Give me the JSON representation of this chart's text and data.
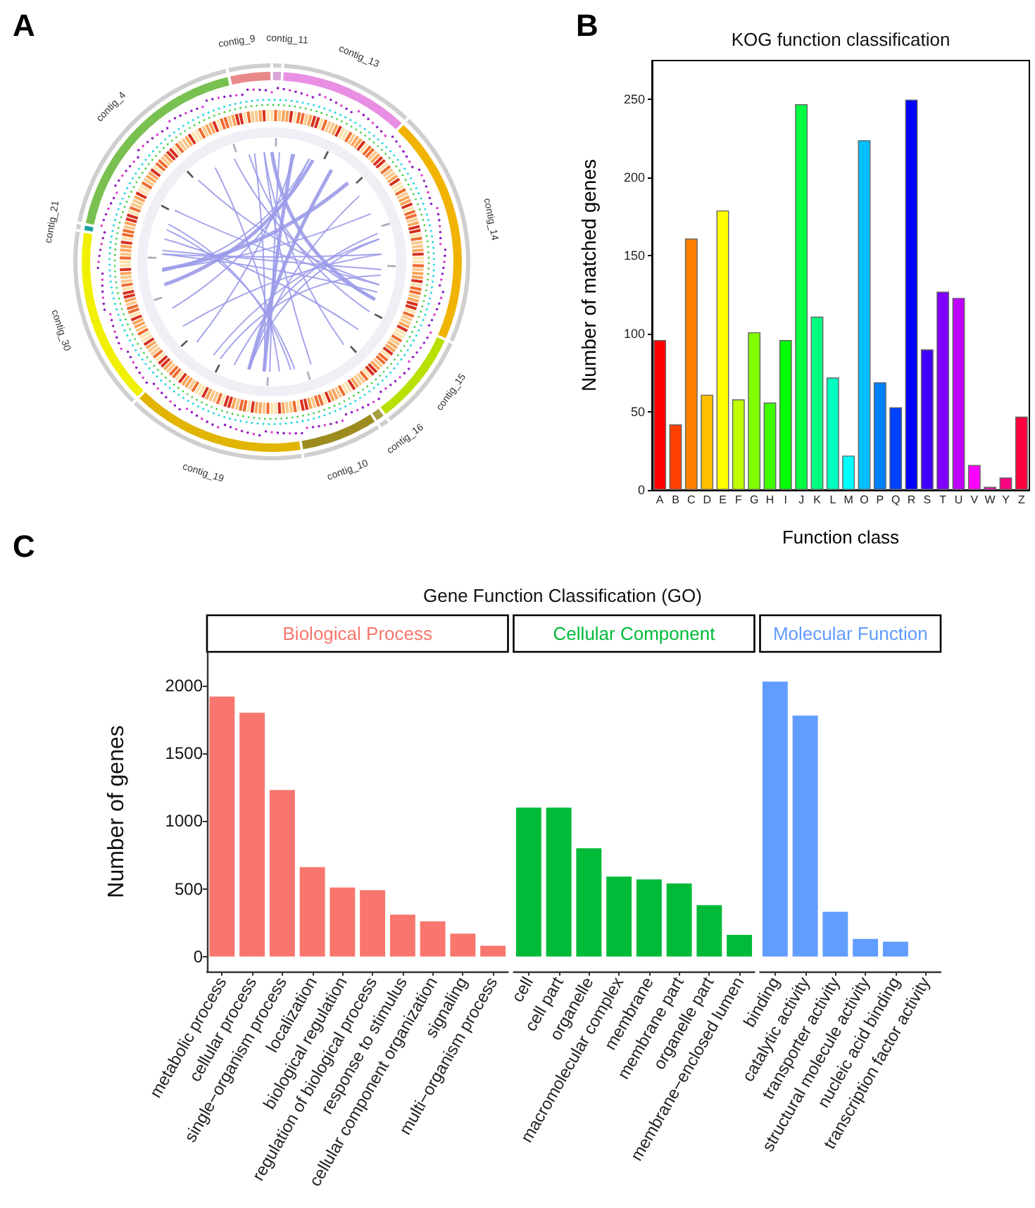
{
  "chart_data": [
    {
      "type": "other",
      "annotations": [
        "A",
        "contig_9",
        "contig_11",
        "contig_13",
        "contig_14",
        "contig_15",
        "contig_16",
        "contig_10",
        "contig_19",
        "contig_30",
        "contig_21",
        "contig_4"
      ]
    },
    {
      "type": "bar",
      "annotations": [
        "B"
      ],
      "title": "KOG function classification",
      "xlabel": "Function class",
      "ylabel": "Number of matched genes",
      "categories": [
        "A",
        "B",
        "C",
        "D",
        "E",
        "F",
        "G",
        "H",
        "I",
        "J",
        "K",
        "L",
        "M",
        "O",
        "P",
        "Q",
        "R",
        "S",
        "T",
        "U",
        "V",
        "W",
        "Y",
        "Z"
      ],
      "values": [
        96,
        42,
        161,
        61,
        179,
        58,
        101,
        56,
        96,
        247,
        111,
        72,
        22,
        224,
        69,
        53,
        250,
        90,
        127,
        123,
        16,
        2,
        8,
        47
      ],
      "colors": [
        "#ff0000",
        "#ff4000",
        "#ff8000",
        "#ffbf00",
        "#ffff00",
        "#bfff00",
        "#80ff00",
        "#40ff00",
        "#00ff00",
        "#00ff40",
        "#00ff80",
        "#00ffbf",
        "#00ffff",
        "#00bfff",
        "#0080ff",
        "#0040ff",
        "#0000ff",
        "#4000ff",
        "#8000ff",
        "#bf00ff",
        "#ff00ff",
        "#ff00bf",
        "#ff0080",
        "#ff0040"
      ],
      "ylim": [
        0,
        275
      ],
      "yticks": [
        0,
        50,
        100,
        150,
        200,
        250
      ]
    },
    {
      "type": "bar",
      "annotations": [
        "C"
      ],
      "title": "Gene Function Classification (GO)",
      "ylabel": "Number of genes",
      "categories": [
        "metabolic process",
        "cellular process",
        "single−organism process",
        "localization",
        "biological regulation",
        "regulation of biological process",
        "response to stimulus",
        "cellular component organization",
        "signaling",
        "multi−organism process",
        "cell",
        "cell part",
        "organelle",
        "macromolecular complex",
        "membrane",
        "membrane part",
        "organelle part",
        "membrane−enclosed lumen",
        "binding",
        "catalytic activity",
        "transporter activity",
        "structural molecule activity",
        "nucleic acid binding",
        "transcription factor activity"
      ],
      "series": [
        {
          "name": "Biological Process",
          "color": "#f8766d",
          "values": [
            1920,
            1800,
            1230,
            660,
            510,
            490,
            310,
            260,
            170,
            80,
            null,
            null,
            null,
            null,
            null,
            null,
            null,
            null,
            null,
            null,
            null,
            null,
            null,
            null
          ]
        },
        {
          "name": "Cellular Component",
          "color": "#00ba38",
          "values": [
            null,
            null,
            null,
            null,
            null,
            null,
            null,
            null,
            null,
            null,
            1100,
            1100,
            800,
            590,
            570,
            540,
            380,
            160,
            null,
            null,
            null,
            null,
            null,
            null
          ]
        },
        {
          "name": "Molecular Function",
          "color": "#619cff",
          "values": [
            null,
            null,
            null,
            null,
            null,
            null,
            null,
            null,
            null,
            null,
            null,
            null,
            null,
            null,
            null,
            null,
            null,
            null,
            2030,
            1780,
            330,
            130,
            110,
            null
          ]
        }
      ],
      "ylim": [
        -110,
        2250
      ],
      "yticks": [
        0,
        500,
        1000,
        1500,
        2000
      ]
    }
  ]
}
